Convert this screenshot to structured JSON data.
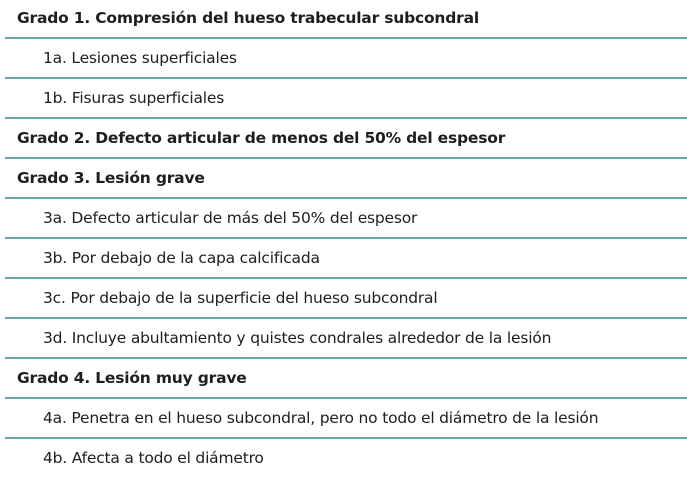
{
  "rows": [
    {
      "type": "head",
      "text": "Grado 1. Compresión del hueso trabecular subcondral"
    },
    {
      "type": "sub",
      "text": "1a. Lesiones superficiales"
    },
    {
      "type": "sub",
      "text": "1b. Fisuras superficiales"
    },
    {
      "type": "head",
      "text": "Grado 2. Defecto articular de menos del 50% del espesor"
    },
    {
      "type": "head",
      "text": "Grado 3. Lesión grave"
    },
    {
      "type": "sub",
      "text": "3a. Defecto articular de más del 50% del espesor"
    },
    {
      "type": "sub",
      "text": "3b. Por debajo de la capa calcificada"
    },
    {
      "type": "sub",
      "text": "3c. Por debajo de la superficie del hueso subcondral"
    },
    {
      "type": "sub",
      "text": "3d. Incluye abultamiento y quistes condrales alrededor de la lesión"
    },
    {
      "type": "head",
      "text": "Grado 4. Lesión muy grave"
    },
    {
      "type": "sub",
      "text": "4a. Penetra en el hueso subcondral, pero no todo el diámetro de la lesión"
    },
    {
      "type": "sub",
      "text": "4b. Afecta a todo el diámetro"
    }
  ],
  "colors": {
    "rule": "#6aa3a8",
    "text": "#1e1e1e"
  }
}
